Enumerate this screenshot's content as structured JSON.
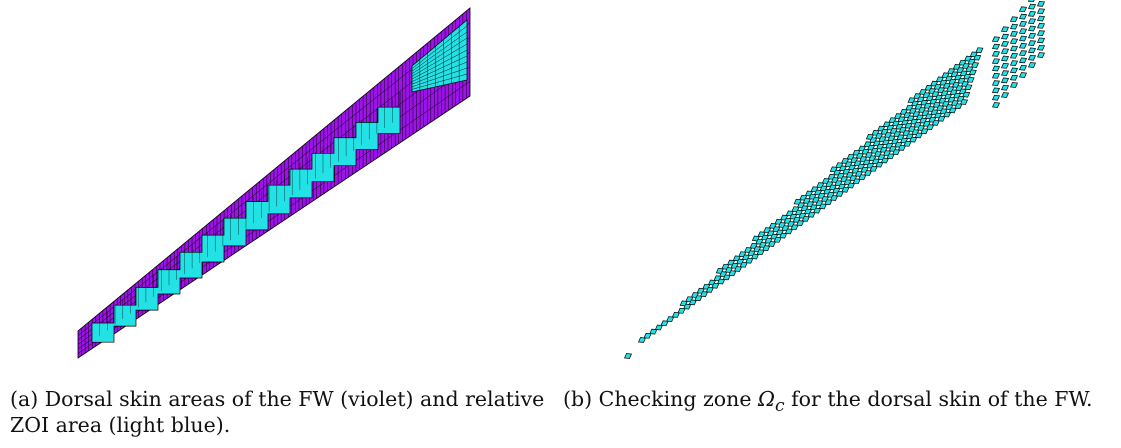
{
  "colors": {
    "violet": "#9b13e6",
    "light_blue": "#22e2e6",
    "mesh_line": "#000000"
  },
  "captions": {
    "a": {
      "tag": "(a)",
      "text": "Dorsal skin areas of the FW (violet) and relative ZOI area (light blue)."
    },
    "b": {
      "tag": "(b)",
      "before": "Checking zone ",
      "symbol": "Ω",
      "subscript": "c",
      "after": " for the dorsal skin of the FW."
    }
  }
}
